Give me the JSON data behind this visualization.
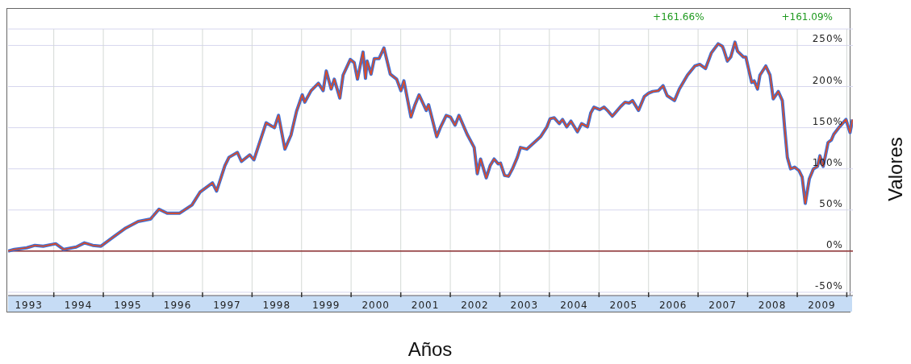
{
  "chart_data": {
    "type": "line",
    "xlabel": "Años",
    "ylabel": "Valores",
    "annotations": [
      "+161.66%",
      "+161.09%"
    ],
    "x": [
      "1993-01-29",
      "1993-03-15",
      "1993-06-15",
      "1993-08-15",
      "1993-10-15",
      "1994-01-15",
      "1994-03-15",
      "1994-06-15",
      "1994-08-15",
      "1994-10-15",
      "1994-12-15",
      "1995-03-15",
      "1995-06-15",
      "1995-09-15",
      "1995-12-15",
      "1996-02-15",
      "1996-04-15",
      "1996-07-15",
      "1996-10-15",
      "1996-12-15",
      "1997-03-15",
      "1997-04-15",
      "1997-06-15",
      "1997-07-15",
      "1997-09-15",
      "1997-10-15",
      "1997-12-15",
      "1998-01-15",
      "1998-04-15",
      "1998-06-15",
      "1998-07-15",
      "1998-08-31",
      "1998-10-15",
      "1998-11-25",
      "1999-01-06",
      "1999-01-24",
      "1999-03-12",
      "1999-05-05",
      "1999-06-09",
      "1999-07-02",
      "1999-08-07",
      "1999-08-30",
      "1999-10-10",
      "1999-11-03",
      "1999-12-26",
      "2000-01-24",
      "2000-02-17",
      "2000-03-29",
      "2000-04-16",
      "2000-04-28",
      "2000-05-27",
      "2000-06-20",
      "2000-07-25",
      "2000-08-30",
      "2000-10-16",
      "2000-12-02",
      "2001-01-02",
      "2001-01-24",
      "2001-03-17",
      "2001-04-16",
      "2001-05-16",
      "2001-07-08",
      "2001-07-25",
      "2001-09-23",
      "2001-10-22",
      "2001-12-02",
      "2002-01-02",
      "2002-02-05",
      "2002-03-06",
      "2002-05-05",
      "2002-06-26",
      "2002-07-19",
      "2002-08-12",
      "2002-09-23",
      "2002-10-22",
      "2002-11-20",
      "2002-12-20",
      "2003-01-06",
      "2003-02-05",
      "2003-03-06",
      "2003-04-04",
      "2003-05-10",
      "2003-06-02",
      "2003-07-19",
      "2003-09-11",
      "2003-10-28",
      "2003-12-14",
      "2004-01-07",
      "2004-02-06",
      "2004-03-14",
      "2004-04-07",
      "2004-05-08",
      "2004-06-08",
      "2004-07-26",
      "2004-08-26",
      "2004-10-08",
      "2004-11-01",
      "2004-11-25",
      "2005-01-07",
      "2005-02-07",
      "2005-03-10",
      "2005-04-09",
      "2005-06-11",
      "2005-07-12",
      "2005-08-12",
      "2005-09-05",
      "2005-10-19",
      "2005-12-01",
      "2006-01-02",
      "2006-01-31",
      "2006-03-14",
      "2006-04-18",
      "2006-05-18",
      "2006-07-11",
      "2006-08-16",
      "2006-10-15",
      "2006-12-08",
      "2007-01-13",
      "2007-02-25",
      "2007-04-09",
      "2007-05-29",
      "2007-06-29",
      "2007-07-11",
      "2007-08-05",
      "2007-08-30",
      "2007-09-30",
      "2007-10-19",
      "2007-12-01",
      "2007-12-19",
      "2008-01-31",
      "2008-02-18",
      "2008-03-14",
      "2008-04-01",
      "2008-05-14",
      "2008-06-14",
      "2008-07-08",
      "2008-08-14",
      "2008-09-13",
      "2008-10-01",
      "2008-10-20",
      "2008-11-13",
      "2008-12-13",
      "2009-01-13",
      "2009-02-06",
      "2009-03-01",
      "2009-03-31",
      "2009-04-30",
      "2009-05-30",
      "2009-06-17",
      "2009-07-11",
      "2009-08-16",
      "2009-09-09",
      "2009-09-27",
      "2009-11-08",
      "2009-12-26",
      "2010-01-25",
      "2010-02-12"
    ],
    "series": [
      {
        "color": "#3a6fd8",
        "values": [
          0,
          2,
          4,
          7,
          6,
          9,
          2,
          5,
          10,
          7,
          6,
          17,
          28,
          36,
          39,
          51,
          46,
          46,
          56,
          72,
          83,
          73,
          104,
          114,
          120,
          109,
          117,
          111,
          156,
          150,
          165,
          124,
          141,
          170,
          190,
          181,
          195,
          204,
          195,
          219,
          197,
          209,
          186,
          214,
          233,
          229,
          209,
          242,
          210,
          231,
          215,
          234,
          234,
          247,
          215,
          209,
          195,
          207,
          163,
          178,
          190,
          171,
          178,
          139,
          151,
          165,
          163,
          153,
          165,
          142,
          126,
          94,
          112,
          89,
          104,
          112,
          106,
          107,
          92,
          91,
          100,
          114,
          126,
          124,
          132,
          139,
          151,
          161,
          162,
          155,
          160,
          151,
          158,
          145,
          155,
          151,
          168,
          175,
          172,
          175,
          170,
          164,
          176,
          181,
          180,
          183,
          171,
          188,
          192,
          194,
          195,
          201,
          189,
          183,
          197,
          214,
          225,
          227,
          222,
          241,
          252,
          249,
          244,
          231,
          236,
          254,
          243,
          236,
          236,
          205,
          207,
          197,
          214,
          225,
          214,
          185,
          194,
          183,
          148,
          114,
          100,
          102,
          98,
          90,
          58,
          88,
          100,
          103,
          116,
          103,
          132,
          135,
          142,
          151,
          160,
          144,
          160
        ]
      },
      {
        "color": "#e34a1f",
        "values": [
          0,
          2,
          4,
          7,
          6,
          9,
          2,
          5,
          10,
          7,
          6,
          17,
          28,
          36,
          39,
          51,
          46,
          46,
          56,
          72,
          83,
          73,
          104,
          114,
          120,
          109,
          117,
          111,
          156,
          150,
          165,
          124,
          141,
          170,
          190,
          181,
          195,
          204,
          195,
          219,
          197,
          209,
          186,
          214,
          233,
          229,
          209,
          242,
          210,
          231,
          215,
          234,
          234,
          247,
          215,
          209,
          195,
          207,
          163,
          178,
          190,
          171,
          178,
          139,
          151,
          165,
          163,
          153,
          165,
          142,
          126,
          94,
          112,
          89,
          104,
          112,
          106,
          107,
          92,
          91,
          100,
          114,
          126,
          124,
          132,
          139,
          151,
          161,
          162,
          155,
          160,
          151,
          158,
          145,
          155,
          151,
          168,
          175,
          172,
          175,
          170,
          164,
          176,
          181,
          180,
          183,
          171,
          188,
          192,
          194,
          195,
          201,
          189,
          183,
          197,
          214,
          225,
          227,
          222,
          241,
          252,
          249,
          244,
          231,
          236,
          254,
          243,
          236,
          236,
          205,
          207,
          197,
          214,
          225,
          214,
          185,
          194,
          183,
          148,
          114,
          100,
          102,
          98,
          90,
          58,
          88,
          100,
          103,
          116,
          103,
          132,
          135,
          142,
          151,
          160,
          144,
          160
        ]
      }
    ],
    "xlim": [
      "1993-01-29",
      "2010-02-15"
    ],
    "xticks": [
      {
        "value": "1993-07-01",
        "label": "1993"
      },
      {
        "value": "1994-01-01",
        "label": null
      },
      {
        "value": "1994-07-01",
        "label": "1994"
      },
      {
        "value": "1995-01-01",
        "label": null
      },
      {
        "value": "1995-07-01",
        "label": "1995"
      },
      {
        "value": "1996-01-01",
        "label": null
      },
      {
        "value": "1996-07-01",
        "label": "1996"
      },
      {
        "value": "1997-01-01",
        "label": null
      },
      {
        "value": "1997-07-01",
        "label": "1997"
      },
      {
        "value": "1998-01-01",
        "label": null
      },
      {
        "value": "1998-07-01",
        "label": "1998"
      },
      {
        "value": "1999-01-01",
        "label": null
      },
      {
        "value": "1999-07-01",
        "label": "1999"
      },
      {
        "value": "2000-01-01",
        "label": null
      },
      {
        "value": "2000-07-01",
        "label": "2000"
      },
      {
        "value": "2001-01-01",
        "label": null
      },
      {
        "value": "2001-07-01",
        "label": "2001"
      },
      {
        "value": "2002-01-01",
        "label": null
      },
      {
        "value": "2002-07-01",
        "label": "2002"
      },
      {
        "value": "2003-01-01",
        "label": null
      },
      {
        "value": "2003-07-01",
        "label": "2003"
      },
      {
        "value": "2004-01-01",
        "label": null
      },
      {
        "value": "2004-07-01",
        "label": "2004"
      },
      {
        "value": "2005-01-01",
        "label": null
      },
      {
        "value": "2005-07-01",
        "label": "2005"
      },
      {
        "value": "2006-01-01",
        "label": null
      },
      {
        "value": "2006-07-01",
        "label": "2006"
      },
      {
        "value": "2007-01-01",
        "label": null
      },
      {
        "value": "2007-07-01",
        "label": "2007"
      },
      {
        "value": "2008-01-01",
        "label": null
      },
      {
        "value": "2008-07-01",
        "label": "2008"
      },
      {
        "value": "2009-01-01",
        "label": null
      },
      {
        "value": "2009-07-01",
        "label": "2009"
      },
      {
        "value": "2010-01-01",
        "label": null
      }
    ],
    "ylim": [
      -54,
      270
    ],
    "yticks": [
      {
        "value": -50,
        "label": "-50%"
      },
      {
        "value": 0,
        "label": "0%"
      },
      {
        "value": 50,
        "label": "50%"
      },
      {
        "value": 100,
        "label": "100%"
      },
      {
        "value": 150,
        "label": "150%"
      },
      {
        "value": 200,
        "label": "200%"
      },
      {
        "value": 250,
        "label": "250%"
      }
    ],
    "grid": true,
    "ref_lines": [
      {
        "axis": "y",
        "value": 0,
        "color": "#8b2c2c"
      }
    ]
  }
}
